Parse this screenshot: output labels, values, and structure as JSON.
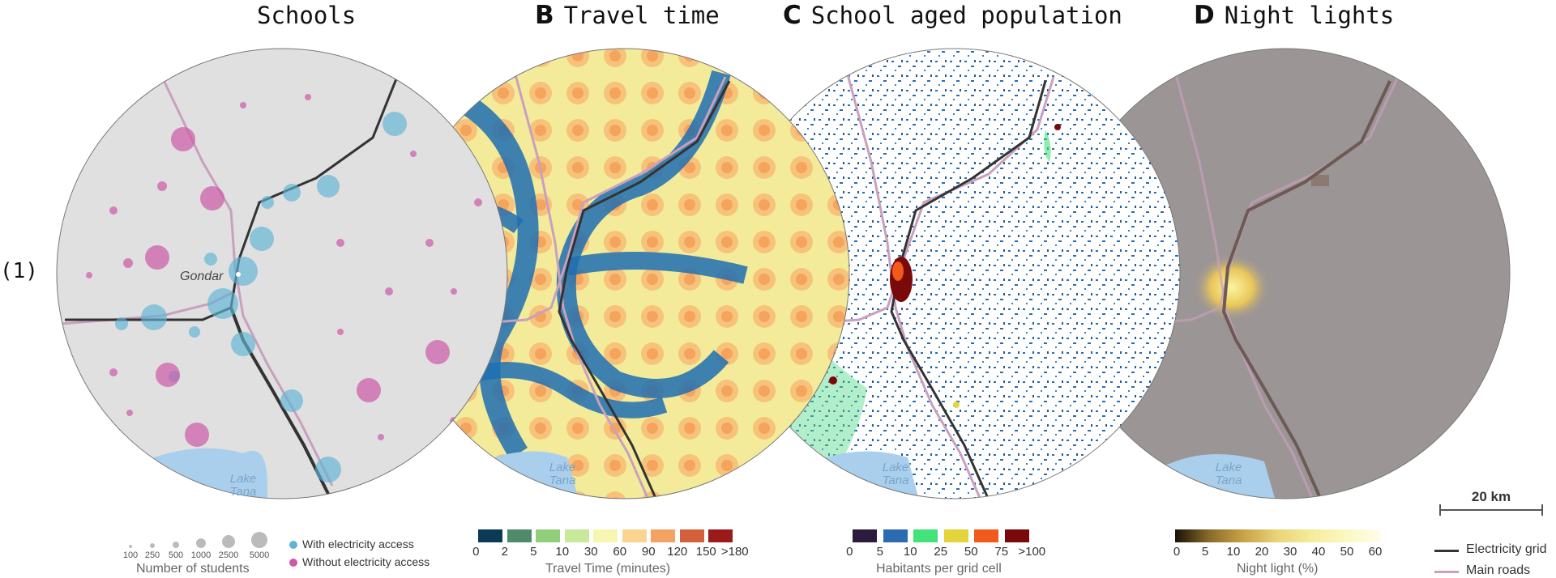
{
  "row_label": "(1)",
  "panels": [
    {
      "letter": "",
      "title": "Schools"
    },
    {
      "letter": "B",
      "title": "Travel time"
    },
    {
      "letter": "C",
      "title": "School aged population"
    },
    {
      "letter": "D",
      "title": "Night lights"
    }
  ],
  "map_labels": {
    "city": "Gondar",
    "lake_line1": "Lake",
    "lake_line2": "Tana"
  },
  "scale_bar": {
    "label": "20 km"
  },
  "legend_schools": {
    "sizes": [
      "100",
      "250",
      "500",
      "1000",
      "2500",
      "5000"
    ],
    "title": "Number of students",
    "with_access": "With electricity access",
    "without_access": "Without electricity access"
  },
  "legend_travel": {
    "ticks": [
      "0",
      "2",
      "5",
      "10",
      "30",
      "60",
      "90",
      "120",
      "150",
      ">180"
    ],
    "colors": [
      "#0b3b54",
      "#4f8a6b",
      "#8fcf7a",
      "#c8e89a",
      "#f7f5b0",
      "#fbd48f",
      "#f4a261",
      "#d2603a",
      "#9b1b1b"
    ],
    "title": "Travel Time (minutes)"
  },
  "legend_population": {
    "ticks": [
      "0",
      "5",
      "10",
      "25",
      "50",
      "75",
      ">100"
    ],
    "colors": [
      "#2d1b3d",
      "#2b6cb0",
      "#43e27a",
      "#e2d43a",
      "#f05a1a",
      "#7a0a0a"
    ],
    "title": "Habitants per grid cell"
  },
  "legend_night": {
    "ticks": [
      "0",
      "5",
      "10",
      "20",
      "30",
      "40",
      "50",
      "60"
    ],
    "title": "Night light (%)"
  },
  "legend_lines": {
    "grid": "Electricity grid",
    "roads": "Main roads"
  },
  "colors": {
    "schools_bg": "#e0e0e0",
    "with_access": "#5fb4d6",
    "without_access": "#cc5aa8",
    "lake": "#a9cfec",
    "grid_line": "#333333",
    "road_line": "#c9a0be",
    "night_bg": "#9c9595"
  }
}
